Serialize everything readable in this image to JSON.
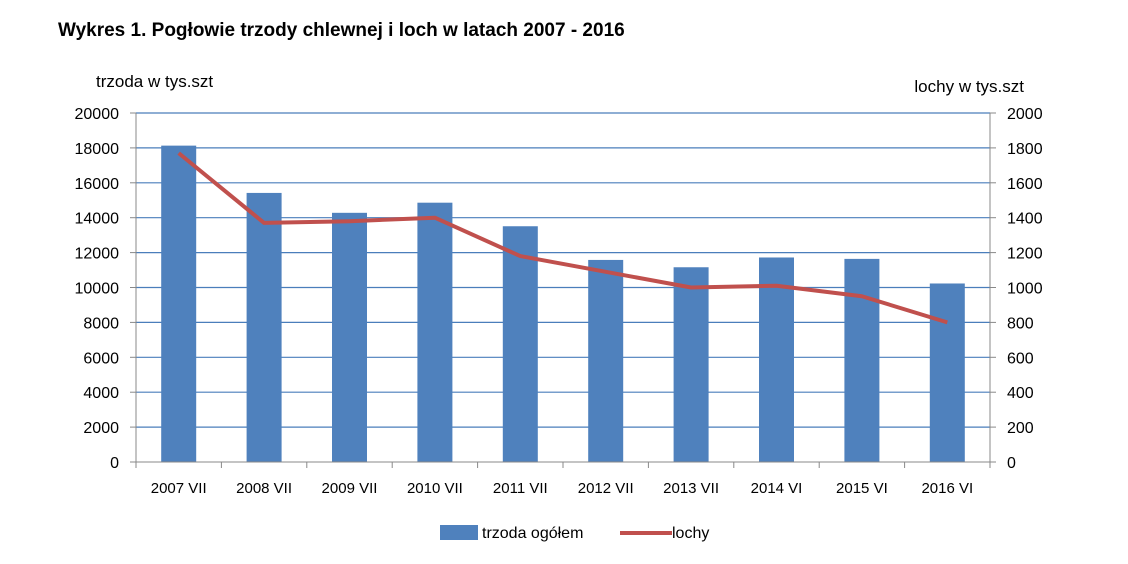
{
  "chart_data": {
    "type": "bar",
    "title": "Wykres 1.  Pogłowie trzody chlewnej i loch w latach 2007 - 2016",
    "ylabel_left": "trzoda w tys.szt",
    "ylabel_right": "lochy w tys.szt",
    "categories": [
      "2007 VII",
      "2008 VII",
      "2009 VII",
      "2010 VII",
      "2011 VII",
      "2012 VII",
      "2013 VII",
      "2014 VI",
      "2015 VI",
      "2016 VI"
    ],
    "ylim_left": [
      0,
      20000
    ],
    "ylim_right": [
      0,
      2000
    ],
    "yticks_left": [
      "0",
      "2000",
      "4000",
      "6000",
      "8000",
      "10000",
      "12000",
      "14000",
      "16000",
      "18000",
      "20000"
    ],
    "yticks_right": [
      "0",
      "200",
      "400",
      "600",
      "800",
      "1000",
      "1200",
      "1400",
      "1600",
      "1800",
      "2000"
    ],
    "grid": true,
    "legend_position": "bottom",
    "series": [
      {
        "name": "trzoda ogółem",
        "type": "bar",
        "axis": "left",
        "color": "#4F81BD",
        "values": [
          18130,
          15420,
          14280,
          14860,
          13510,
          11580,
          11160,
          11720,
          11640,
          10230
        ]
      },
      {
        "name": "lochy",
        "type": "line",
        "axis": "right",
        "color": "#C0504D",
        "values": [
          1770,
          1370,
          1380,
          1400,
          1180,
          1090,
          1000,
          1010,
          950,
          800
        ]
      }
    ]
  }
}
